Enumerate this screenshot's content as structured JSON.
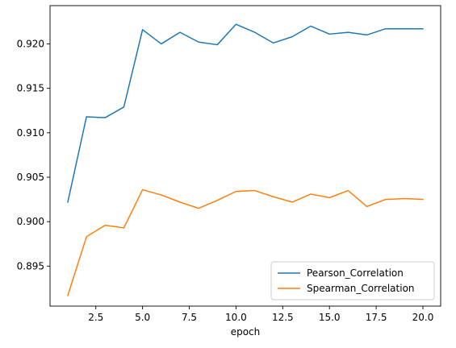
{
  "chart_data": {
    "type": "line",
    "xlabel": "epoch",
    "ylabel": "",
    "title": "",
    "xlim": [
      0.05,
      20.95
    ],
    "ylim": [
      0.8905,
      0.9243
    ],
    "xticks": [
      2.5,
      5.0,
      7.5,
      10.0,
      12.5,
      15.0,
      17.5,
      20.0
    ],
    "xtick_labels": [
      "2.5",
      "5.0",
      "7.5",
      "10.0",
      "12.5",
      "15.0",
      "17.5",
      "20.0"
    ],
    "yticks": [
      0.895,
      0.9,
      0.905,
      0.91,
      0.915,
      0.92
    ],
    "ytick_labels": [
      "0.895",
      "0.900",
      "0.905",
      "0.910",
      "0.915",
      "0.920"
    ],
    "legend_position": "lower-right",
    "grid": false,
    "x": [
      1,
      2,
      3,
      4,
      5,
      6,
      7,
      8,
      9,
      10,
      11,
      12,
      13,
      14,
      15,
      16,
      17,
      18,
      19,
      20
    ],
    "series": [
      {
        "name": "Pearson_Correlation",
        "color": "#1f77b4",
        "values": [
          0.9022,
          0.9118,
          0.9117,
          0.9129,
          0.9216,
          0.92,
          0.9213,
          0.9202,
          0.9199,
          0.9222,
          0.9213,
          0.9201,
          0.9208,
          0.922,
          0.9211,
          0.9213,
          0.921,
          0.9217,
          0.9217,
          0.9217
        ]
      },
      {
        "name": "Spearman_Correlation",
        "color": "#ff7f0e",
        "values": [
          0.8917,
          0.8983,
          0.8996,
          0.8993,
          0.9036,
          0.903,
          0.9022,
          0.9015,
          0.9024,
          0.9034,
          0.9035,
          0.9028,
          0.9022,
          0.9031,
          0.9027,
          0.9035,
          0.9017,
          0.9025,
          0.9026,
          0.9025
        ]
      }
    ]
  }
}
